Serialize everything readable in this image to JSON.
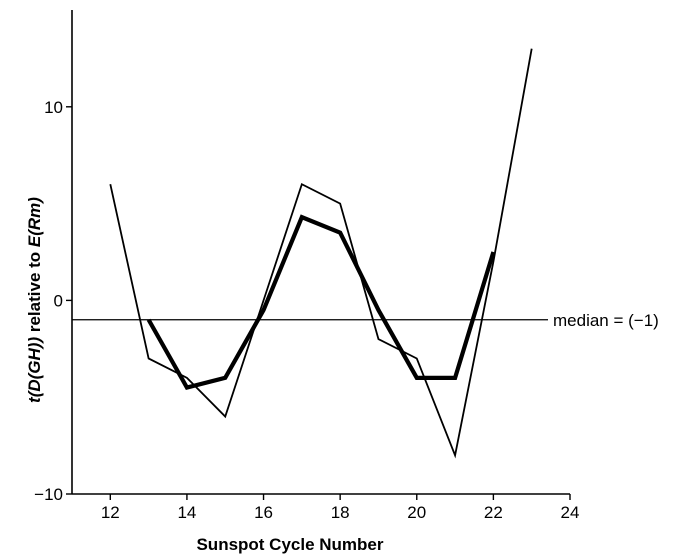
{
  "chart_data": {
    "type": "line",
    "title": "",
    "xlabel": "Sunspot Cycle Number",
    "ylabel_parts": [
      {
        "text": "t(D(GH))",
        "italic": true
      },
      {
        "text": " relative to ",
        "italic": false
      },
      {
        "text": "E(Rm)",
        "italic": true
      }
    ],
    "xlim": [
      11,
      24
    ],
    "ylim": [
      -10,
      15
    ],
    "x_ticks": [
      12,
      14,
      16,
      18,
      20,
      22,
      24
    ],
    "x_tick_labels": [
      "12",
      "14",
      "16",
      "18",
      "20",
      "22",
      "24"
    ],
    "y_ticks": [
      -10,
      0,
      10
    ],
    "y_tick_labels": [
      "−10",
      "0",
      "10"
    ],
    "grid": false,
    "series": [
      {
        "style": "thin",
        "x": [
          12,
          13,
          14,
          15,
          16,
          17,
          18,
          19,
          20,
          21,
          22,
          23
        ],
        "values": [
          6,
          -3,
          -4,
          -6,
          0,
          6,
          5,
          -2,
          -3,
          -8,
          2,
          13
        ]
      },
      {
        "style": "thick",
        "x": [
          13,
          14,
          15,
          16,
          17,
          18,
          19,
          20,
          21,
          22
        ],
        "values": [
          -1,
          -4.5,
          -4,
          -0.5,
          4.3,
          3.5,
          -0.5,
          -4,
          -4,
          2.5
        ]
      }
    ],
    "reference_line": {
      "y": -1,
      "label": "median = (−1)"
    }
  }
}
